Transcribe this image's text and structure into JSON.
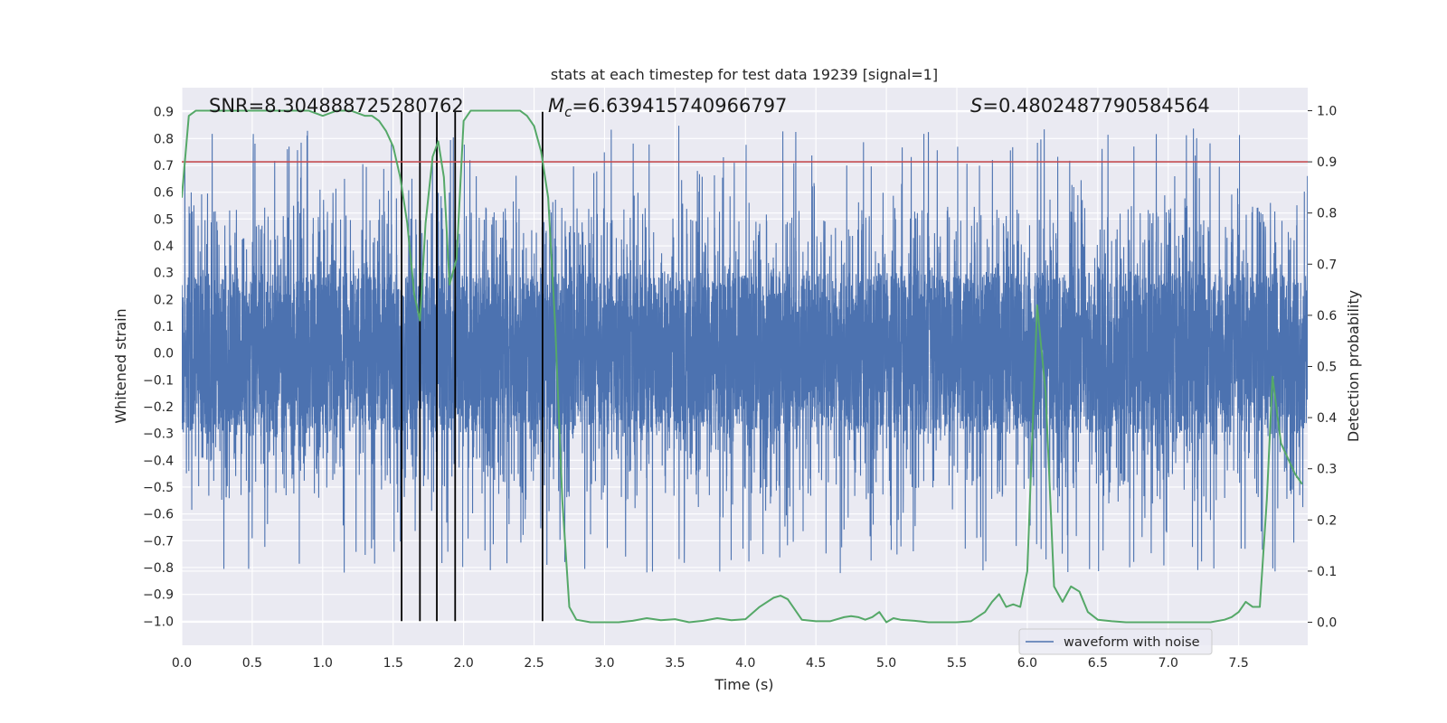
{
  "chart_data": {
    "type": "line",
    "title": "stats at each timestep for test data 19239 [signal=1]",
    "xlabel": "Time (s)",
    "ylabel": "Whitened strain",
    "y2label": "Detection probability",
    "xlim": [
      0.0,
      7.99
    ],
    "ylim": [
      -1.09,
      0.99
    ],
    "y2lim": [
      -0.045,
      1.045
    ],
    "x_ticks": [
      0.0,
      0.5,
      1.0,
      1.5,
      2.0,
      2.5,
      3.0,
      3.5,
      4.0,
      4.5,
      5.0,
      5.5,
      6.0,
      6.5,
      7.0,
      7.5
    ],
    "x_tick_labels": [
      "0.0",
      "0.5",
      "1.0",
      "1.5",
      "2.0",
      "2.5",
      "3.0",
      "3.5",
      "4.0",
      "4.5",
      "5.0",
      "5.5",
      "6.0",
      "6.5",
      "7.0",
      "7.5"
    ],
    "y_ticks": [
      0.9,
      0.8,
      0.7,
      0.6,
      0.5,
      0.4,
      0.3,
      0.2,
      0.1,
      0.0,
      -0.1,
      -0.2,
      -0.3,
      -0.4,
      -0.5,
      -0.6,
      -0.7,
      -0.8,
      -0.9,
      -1.0
    ],
    "y_tick_labels": [
      "0.9",
      "0.8",
      "0.7",
      "0.6",
      "0.5",
      "0.4",
      "0.3",
      "0.2",
      "0.1",
      "0.0",
      "−0.1",
      "−0.2",
      "−0.3",
      "−0.4",
      "−0.5",
      "−0.6",
      "−0.7",
      "−0.8",
      "−0.9",
      "−1.0"
    ],
    "y2_ticks": [
      1.0,
      0.9,
      0.8,
      0.7,
      0.6,
      0.5,
      0.4,
      0.3,
      0.2,
      0.1,
      0.0
    ],
    "y2_tick_labels": [
      "1.0",
      "0.9",
      "0.8",
      "0.7",
      "0.6",
      "0.5",
      "0.4",
      "0.3",
      "0.2",
      "0.1",
      "0.0"
    ],
    "threshold": 0.9,
    "event_lines_s": [
      1.56,
      1.69,
      1.81,
      1.94,
      2.56
    ],
    "event_line_range": [
      -1.0,
      0.9
    ],
    "annotations": {
      "snr": "SNR=8.304888725280762",
      "mc_symbol": "M",
      "mc_sub": "c",
      "mc_value": "=6.639415740966797",
      "s_symbol": "S",
      "s_value": "=0.4802487790584564"
    },
    "legend": {
      "label": "waveform with noise",
      "placement": "lower-right"
    },
    "noise": {
      "label": "waveform with noise",
      "color": "#4c72b0",
      "samples": 8000,
      "core_amplitude": 0.3,
      "spike_max": 0.85,
      "spike_min": -1.0
    },
    "probability": {
      "color": "#55a868",
      "x": [
        0.0,
        0.05,
        0.1,
        0.2,
        0.3,
        0.4,
        0.5,
        0.6,
        0.7,
        0.8,
        0.9,
        1.0,
        1.1,
        1.2,
        1.3,
        1.35,
        1.4,
        1.45,
        1.5,
        1.55,
        1.6,
        1.65,
        1.69,
        1.73,
        1.78,
        1.82,
        1.86,
        1.9,
        1.95,
        2.0,
        2.05,
        2.1,
        2.2,
        2.3,
        2.4,
        2.45,
        2.5,
        2.55,
        2.6,
        2.65,
        2.7,
        2.75,
        2.8,
        2.9,
        3.0,
        3.1,
        3.2,
        3.3,
        3.4,
        3.5,
        3.6,
        3.7,
        3.8,
        3.9,
        4.0,
        4.1,
        4.2,
        4.25,
        4.3,
        4.4,
        4.5,
        4.6,
        4.7,
        4.75,
        4.8,
        4.85,
        4.9,
        4.95,
        5.0,
        5.05,
        5.1,
        5.2,
        5.3,
        5.4,
        5.5,
        5.6,
        5.7,
        5.75,
        5.8,
        5.85,
        5.9,
        5.95,
        6.0,
        6.07,
        6.13,
        6.19,
        6.25,
        6.31,
        6.37,
        6.43,
        6.5,
        6.6,
        6.7,
        6.8,
        6.9,
        7.0,
        7.1,
        7.2,
        7.3,
        7.4,
        7.45,
        7.5,
        7.55,
        7.6,
        7.65,
        7.7,
        7.74,
        7.8,
        7.85,
        7.9,
        7.95
      ],
      "y": [
        0.83,
        0.99,
        1.0,
        1.0,
        1.0,
        1.0,
        1.0,
        1.0,
        1.0,
        1.0,
        1.0,
        0.99,
        1.0,
        1.0,
        0.99,
        0.99,
        0.98,
        0.96,
        0.93,
        0.87,
        0.78,
        0.64,
        0.59,
        0.78,
        0.91,
        0.94,
        0.87,
        0.66,
        0.71,
        0.98,
        1.0,
        1.0,
        1.0,
        1.0,
        1.0,
        0.99,
        0.97,
        0.92,
        0.83,
        0.58,
        0.24,
        0.03,
        0.005,
        0.0,
        0.0,
        0.0,
        0.003,
        0.008,
        0.004,
        0.006,
        0.0,
        0.003,
        0.008,
        0.004,
        0.006,
        0.03,
        0.048,
        0.052,
        0.045,
        0.005,
        0.002,
        0.002,
        0.01,
        0.012,
        0.01,
        0.005,
        0.01,
        0.02,
        0.0,
        0.008,
        0.005,
        0.003,
        0.0,
        0.0,
        0.0,
        0.002,
        0.02,
        0.04,
        0.055,
        0.03,
        0.035,
        0.03,
        0.1,
        0.62,
        0.45,
        0.07,
        0.04,
        0.07,
        0.06,
        0.02,
        0.005,
        0.002,
        0.0,
        0.0,
        0.0,
        0.0,
        0.0,
        0.0,
        0.0,
        0.005,
        0.01,
        0.02,
        0.04,
        0.03,
        0.03,
        0.24,
        0.48,
        0.35,
        0.32,
        0.29,
        0.27
      ]
    }
  }
}
